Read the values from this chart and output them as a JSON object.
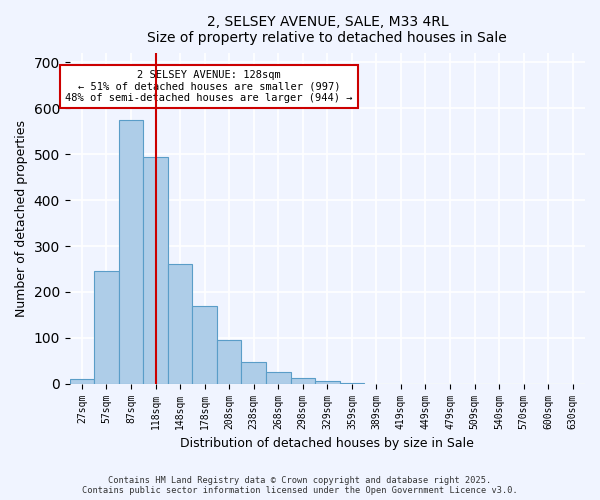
{
  "title": "2, SELSEY AVENUE, SALE, M33 4RL",
  "subtitle": "Size of property relative to detached houses in Sale",
  "xlabel": "Distribution of detached houses by size in Sale",
  "ylabel": "Number of detached properties",
  "bar_values": [
    10,
    245,
    575,
    495,
    260,
    170,
    95,
    47,
    25,
    13,
    5,
    2,
    0,
    0,
    0,
    0,
    0,
    0,
    0,
    0,
    0
  ],
  "bar_labels": [
    "27sqm",
    "57sqm",
    "87sqm",
    "118sqm",
    "148sqm",
    "178sqm",
    "208sqm",
    "238sqm",
    "268sqm",
    "298sqm",
    "329sqm",
    "359sqm",
    "389sqm",
    "419sqm",
    "449sqm",
    "479sqm",
    "509sqm",
    "540sqm",
    "570sqm",
    "600sqm",
    "630sqm"
  ],
  "bar_color": "#aecde8",
  "bar_edge_color": "#5a9dc8",
  "ylim": [
    0,
    720
  ],
  "yticks": [
    0,
    100,
    200,
    300,
    400,
    500,
    600,
    700
  ],
  "vline_x": 3,
  "vline_color": "#cc0000",
  "annotation_title": "2 SELSEY AVENUE: 128sqm",
  "annotation_line1": "← 51% of detached houses are smaller (997)",
  "annotation_line2": "48% of semi-detached houses are larger (944) →",
  "annotation_box_color": "#ffffff",
  "annotation_box_edge": "#cc0000",
  "bg_color": "#f0f4ff",
  "footer1": "Contains HM Land Registry data © Crown copyright and database right 2025.",
  "footer2": "Contains public sector information licensed under the Open Government Licence v3.0.",
  "grid_color": "#ffffff"
}
